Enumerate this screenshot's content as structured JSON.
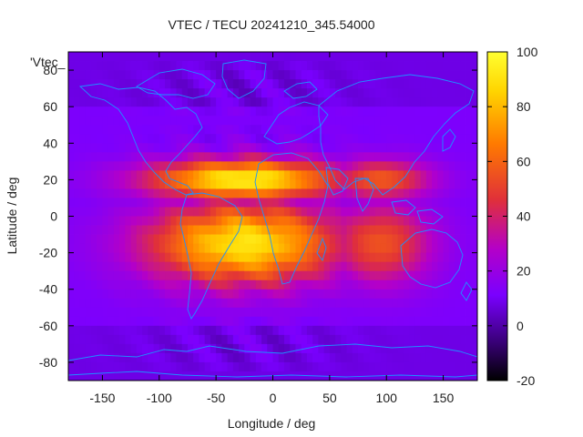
{
  "chart_data": {
    "type": "heatmap",
    "title": "VTEC / TECU 20241210_345.54000",
    "xlabel": "Longitude / deg",
    "ylabel": "Latitude / deg",
    "key_label": "'Vtec_",
    "xlim": [
      -180,
      180
    ],
    "ylim": [
      -90,
      90
    ],
    "x_ticks": [
      -150,
      -100,
      -50,
      0,
      50,
      100,
      150
    ],
    "y_ticks": [
      -80,
      -60,
      -40,
      -20,
      0,
      20,
      40,
      60,
      80
    ],
    "colorbar": {
      "range": [
        -20,
        100
      ],
      "ticks": [
        -20,
        0,
        20,
        40,
        60,
        80,
        100
      ],
      "palette": [
        "#000000",
        "#3a007a",
        "#7a00ff",
        "#b400c8",
        "#e0303a",
        "#ff7a00",
        "#ffd400",
        "#ffff30"
      ]
    },
    "grid": false,
    "background_vtec": 12,
    "crest": {
      "peak_lon": -25,
      "peak_lat": 12,
      "peak_value": 95,
      "north_crest_lat": 20,
      "south_crest_lat": -15
    },
    "coastline_color": "#1e90ff"
  }
}
